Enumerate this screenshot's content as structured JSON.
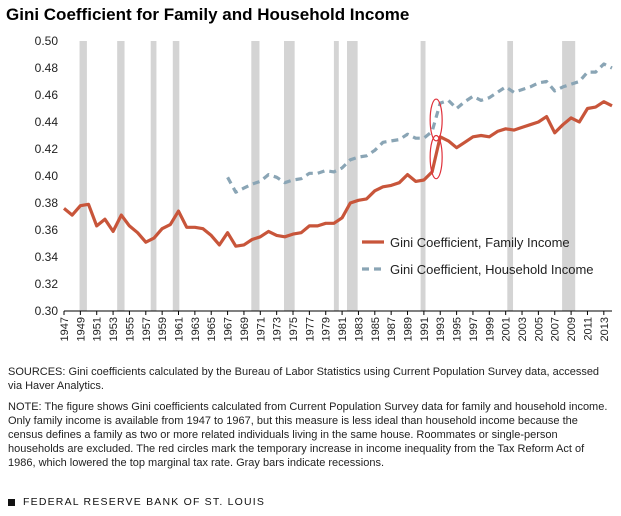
{
  "title": "Gini Coefficient for Family and Household Income",
  "sources": "SOURCES: Gini coefficients calculated by the Bureau of Labor Statistics using Current Population Survey data, accessed via Haver Analytics.",
  "note": "NOTE: The figure shows Gini coefficients calculated from Current Population Survey data for family and household income. Only family income is available from 1947 to 1967, but this measure is less ideal than household income because the census defines a family as two or more related individuals living in the same house. Roommates or single-person households are excluded. The red circles mark the temporary increase in income inequality from the Tax Reform Act of 1986, which lowered the top marginal tax rate. Gray bars indicate recessions.",
  "footer": "FEDERAL RESERVE BANK OF ST. LOUIS",
  "colors": {
    "family": "#c8553a",
    "household": "#8aa5b5",
    "recession": "#d4d4d4",
    "circle": "#e0303a"
  },
  "chart_data": {
    "type": "line",
    "title": "Gini Coefficient for Family and Household Income",
    "xlabel": "",
    "ylabel": "",
    "xlim": [
      1947,
      2014
    ],
    "ylim": [
      0.3,
      0.5
    ],
    "grid": false,
    "legend_position": "center-right",
    "y_ticks": [
      "0.50",
      "0.48",
      "0.46",
      "0.44",
      "0.42",
      "0.40",
      "0.38",
      "0.36",
      "0.34",
      "0.32",
      "0.30"
    ],
    "x_ticks": [
      "1947",
      "1949",
      "1951",
      "1953",
      "1955",
      "1957",
      "1959",
      "1961",
      "1963",
      "1965",
      "1967",
      "1969",
      "1971",
      "1973",
      "1975",
      "1977",
      "1979",
      "1981",
      "1983",
      "1985",
      "1987",
      "1989",
      "1991",
      "1993",
      "1995",
      "1997",
      "1999",
      "2001",
      "2003",
      "2005",
      "2007",
      "2009",
      "2011",
      "2013"
    ],
    "recessions": [
      [
        1948.9,
        1949.8
      ],
      [
        1953.5,
        1954.4
      ],
      [
        1957.6,
        1958.3
      ],
      [
        1960.3,
        1961.1
      ],
      [
        1969.9,
        1970.9
      ],
      [
        1973.9,
        1975.2
      ],
      [
        1980.0,
        1980.6
      ],
      [
        1981.6,
        1982.9
      ],
      [
        1990.6,
        1991.2
      ],
      [
        2001.2,
        2001.9
      ],
      [
        2007.9,
        2009.5
      ]
    ],
    "series": [
      {
        "name": "Gini Coefficient, Family Income",
        "x": [
          1947,
          1948,
          1949,
          1950,
          1951,
          1952,
          1953,
          1954,
          1955,
          1956,
          1957,
          1958,
          1959,
          1960,
          1961,
          1962,
          1963,
          1964,
          1965,
          1966,
          1967,
          1968,
          1969,
          1970,
          1971,
          1972,
          1973,
          1974,
          1975,
          1976,
          1977,
          1978,
          1979,
          1980,
          1981,
          1982,
          1983,
          1984,
          1985,
          1986,
          1987,
          1988,
          1989,
          1990,
          1991,
          1992,
          1993,
          1994,
          1995,
          1996,
          1997,
          1998,
          1999,
          2000,
          2001,
          2002,
          2003,
          2004,
          2005,
          2006,
          2007,
          2008,
          2009,
          2010,
          2011,
          2012,
          2013,
          2014
        ],
        "values": [
          0.376,
          0.371,
          0.378,
          0.379,
          0.363,
          0.368,
          0.359,
          0.371,
          0.363,
          0.358,
          0.351,
          0.354,
          0.361,
          0.364,
          0.374,
          0.362,
          0.362,
          0.361,
          0.356,
          0.349,
          0.358,
          0.348,
          0.349,
          0.353,
          0.355,
          0.359,
          0.356,
          0.355,
          0.357,
          0.358,
          0.363,
          0.363,
          0.365,
          0.365,
          0.369,
          0.38,
          0.382,
          0.383,
          0.389,
          0.392,
          0.393,
          0.395,
          0.401,
          0.396,
          0.397,
          0.403,
          0.429,
          0.426,
          0.421,
          0.425,
          0.429,
          0.43,
          0.429,
          0.433,
          0.435,
          0.434,
          0.436,
          0.438,
          0.44,
          0.444,
          0.432,
          0.438,
          0.443,
          0.44,
          0.45,
          0.451,
          0.455,
          0.452
        ]
      },
      {
        "name": "Gini Coefficient, Household Income",
        "x": [
          1967,
          1968,
          1969,
          1970,
          1971,
          1972,
          1973,
          1974,
          1975,
          1976,
          1977,
          1978,
          1979,
          1980,
          1981,
          1982,
          1983,
          1984,
          1985,
          1986,
          1987,
          1988,
          1989,
          1990,
          1991,
          1992,
          1993,
          1994,
          1995,
          1996,
          1997,
          1998,
          1999,
          2000,
          2001,
          2002,
          2003,
          2004,
          2005,
          2006,
          2007,
          2008,
          2009,
          2010,
          2011,
          2012,
          2013,
          2014
        ],
        "values": [
          0.399,
          0.388,
          0.391,
          0.394,
          0.396,
          0.401,
          0.399,
          0.395,
          0.397,
          0.398,
          0.402,
          0.402,
          0.404,
          0.403,
          0.406,
          0.412,
          0.414,
          0.415,
          0.419,
          0.425,
          0.426,
          0.427,
          0.431,
          0.428,
          0.428,
          0.433,
          0.454,
          0.456,
          0.45,
          0.455,
          0.459,
          0.456,
          0.458,
          0.462,
          0.466,
          0.462,
          0.464,
          0.466,
          0.469,
          0.47,
          0.463,
          0.466,
          0.468,
          0.47,
          0.477,
          0.477,
          0.483,
          0.48
        ]
      }
    ],
    "annotations": [
      {
        "type": "circle",
        "x": 1992.5,
        "y_range": [
          0.426,
          0.457
        ]
      },
      {
        "type": "circle",
        "x": 1992.5,
        "y_range": [
          0.398,
          0.43
        ]
      }
    ]
  }
}
